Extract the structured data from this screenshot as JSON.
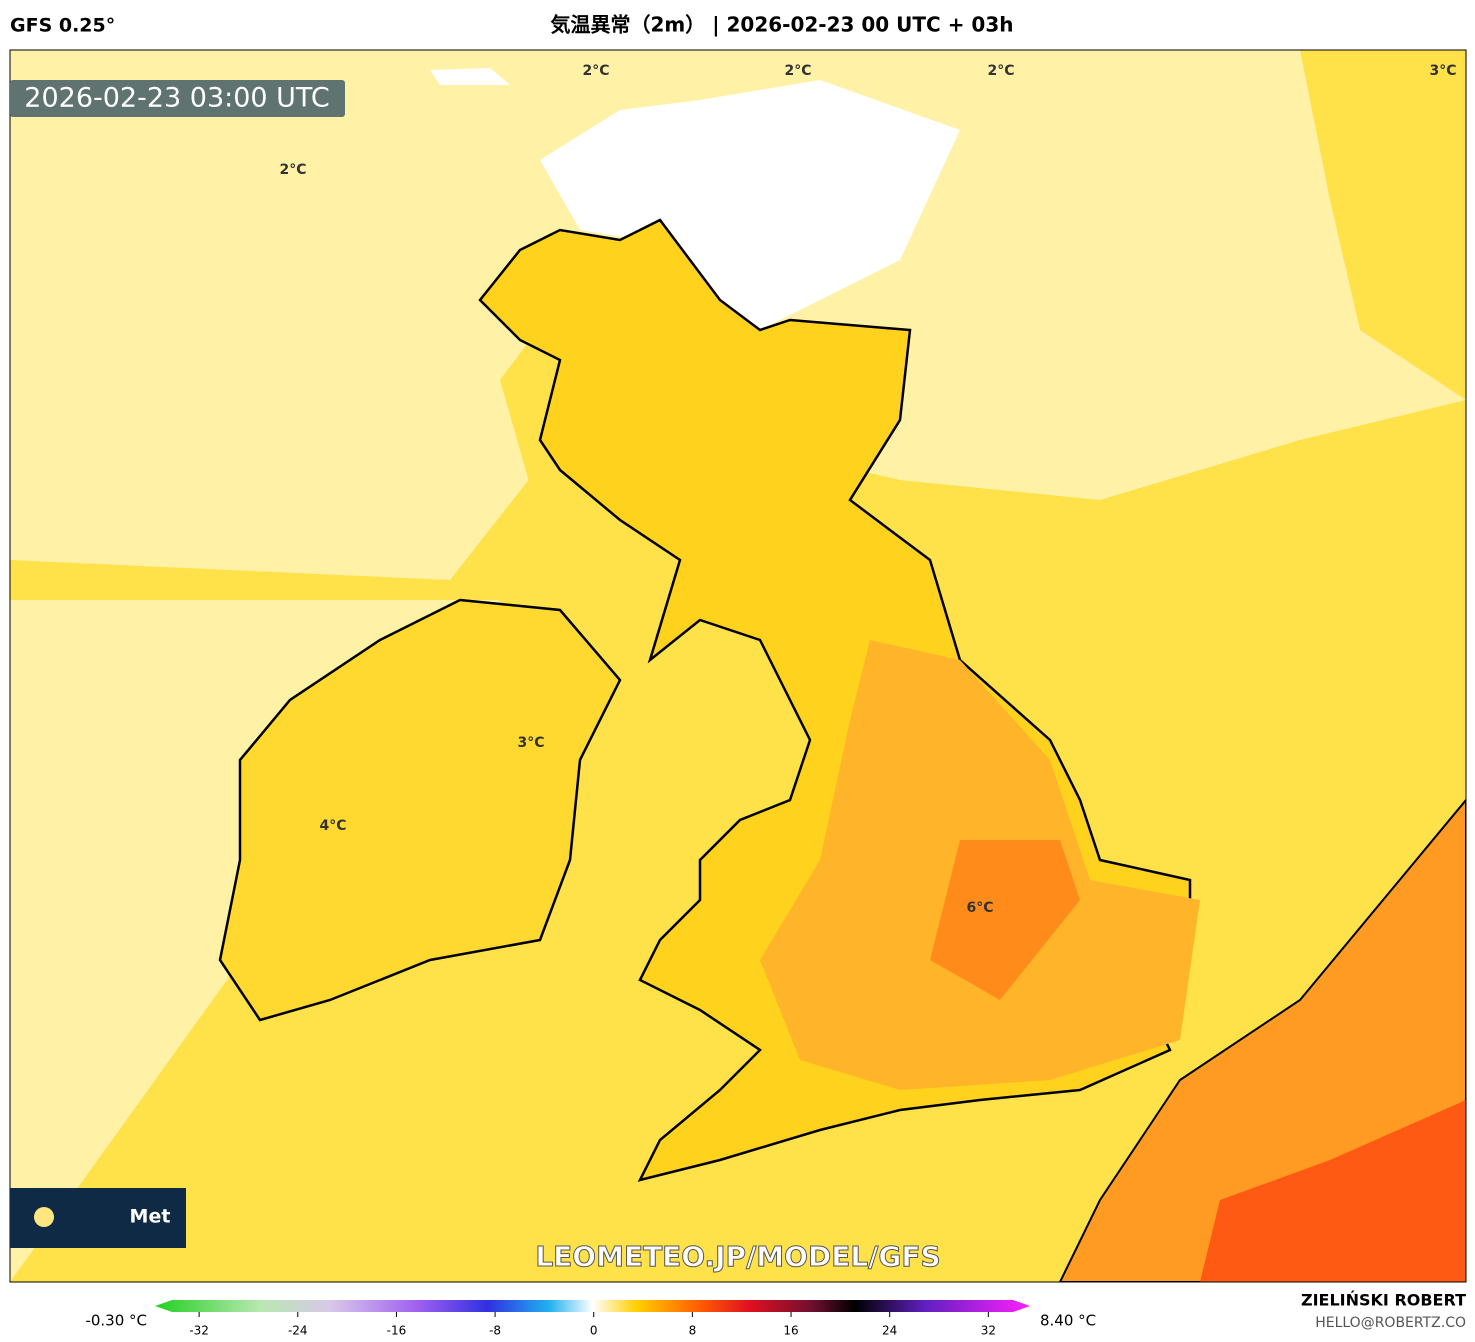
{
  "header": {
    "model": "GFS 0.25°",
    "title": "気温異常（2m） | 2026-02-23 00 UTC + 03h"
  },
  "map": {
    "valid_time": "2026-02-23 03:00 UTC",
    "contour_labels": [
      "2°C",
      "2°C",
      "2°C",
      "3°C",
      "2°C",
      "3°C",
      "4°C",
      "6°C"
    ],
    "logo": "Met",
    "watermark": "LEOMETEO.JP/MODEL/GFS"
  },
  "colorbar": {
    "min_label": "-0.30 °C",
    "max_label": "8.40 °C",
    "lim": [
      -34.2,
      34
    ],
    "ticks": [
      -32,
      -24,
      -16,
      -8,
      0,
      8,
      16,
      24,
      32
    ]
  },
  "footer": {
    "author": "ZIELIŃSKI ROBERT",
    "email": "HELLO@ROBERTZ.CO"
  }
}
